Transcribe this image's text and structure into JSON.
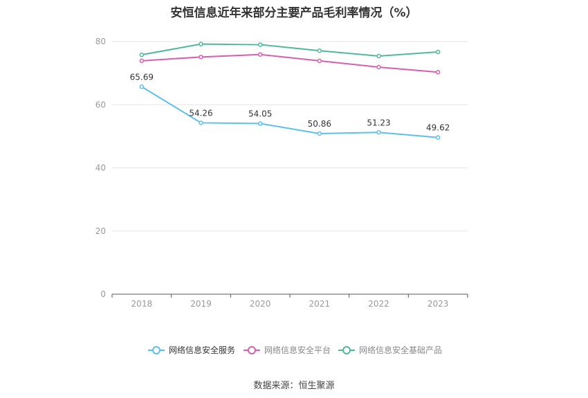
{
  "chart_data": {
    "type": "line",
    "title": "安恒信息近年来部分主要产品毛利率情况（%）",
    "categories": [
      "2018",
      "2019",
      "2020",
      "2021",
      "2022",
      "2023"
    ],
    "ylim": [
      0,
      80
    ],
    "yticks": [
      "0",
      "20",
      "40",
      "60",
      "80"
    ],
    "grid": true,
    "legend_position": "bottom",
    "series": [
      {
        "name": "网络信息安全服务",
        "color": "#5bc0eb",
        "values": [
          65.69,
          54.26,
          54.05,
          50.86,
          51.23,
          49.62
        ],
        "labels": [
          "65.69",
          "54.26",
          "54.05",
          "50.86",
          "51.23",
          "49.62"
        ]
      },
      {
        "name": "网络信息安全平台",
        "color": "#d45fae",
        "values": [
          73.9,
          75.1,
          75.9,
          73.9,
          71.9,
          70.3
        ]
      },
      {
        "name": "网络信息安全基础产品",
        "color": "#4fb89a",
        "values": [
          75.8,
          79.2,
          79.0,
          77.1,
          75.4,
          76.7
        ]
      }
    ]
  },
  "source": "数据来源：恒生聚源"
}
